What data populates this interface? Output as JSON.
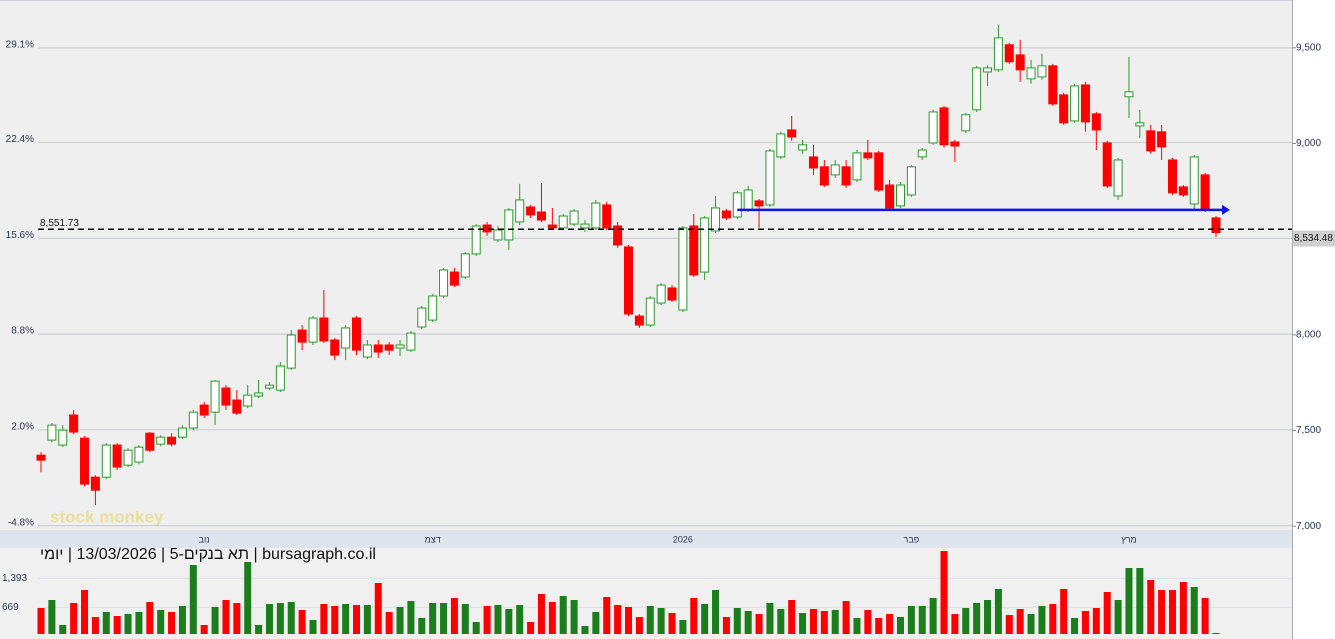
{
  "chart_data": {
    "type": "candlestick",
    "title": "bursagraph.co.il | תא בנקים-5 | 13/03/2026 | יומי",
    "watermark": "stock monkey",
    "categories": [
      null,
      null,
      null,
      null,
      null,
      null,
      null,
      null,
      null,
      null,
      null,
      null,
      null,
      null,
      null,
      "נוב",
      null,
      null,
      null,
      null,
      null,
      null,
      null,
      null,
      null,
      null,
      null,
      null,
      null,
      null,
      null,
      null,
      null,
      null,
      null,
      null,
      "דצמ",
      null,
      null,
      null,
      null,
      null,
      null,
      null,
      null,
      null,
      null,
      null,
      null,
      null,
      null,
      null,
      null,
      null,
      null,
      null,
      null,
      null,
      null,
      "2026",
      null,
      null,
      null,
      null,
      null,
      null,
      null,
      null,
      null,
      null,
      null,
      null,
      null,
      null,
      null,
      null,
      null,
      null,
      null,
      null,
      "פבר",
      null,
      null,
      null,
      null,
      null,
      null,
      null,
      null,
      null,
      null,
      null,
      null,
      null,
      null,
      null,
      null,
      null,
      null,
      null,
      "מרץ",
      null,
      null,
      null,
      null,
      null,
      null,
      null,
      null
    ],
    "ohlc": [
      [
        7371,
        7387,
        7282,
        7345
      ],
      [
        7450,
        7539,
        7439,
        7528
      ],
      [
        7424,
        7528,
        7413,
        7502
      ],
      [
        7581,
        7607,
        7481,
        7492
      ],
      [
        7460,
        7471,
        7209,
        7220
      ],
      [
        7256,
        7267,
        7110,
        7188
      ],
      [
        7256,
        7434,
        7246,
        7424
      ],
      [
        7424,
        7434,
        7293,
        7309
      ],
      [
        7319,
        7408,
        7309,
        7397
      ],
      [
        7335,
        7424,
        7324,
        7413
      ],
      [
        7486,
        7492,
        7387,
        7397
      ],
      [
        7429,
        7476,
        7418,
        7465
      ],
      [
        7465,
        7486,
        7418,
        7429
      ],
      [
        7465,
        7528,
        7455,
        7513
      ],
      [
        7513,
        7607,
        7502,
        7596
      ],
      [
        7633,
        7649,
        7565,
        7581
      ],
      [
        7596,
        7764,
        7528,
        7758
      ],
      [
        7722,
        7737,
        7607,
        7633
      ],
      [
        7659,
        7711,
        7581,
        7591
      ],
      [
        7628,
        7737,
        7617,
        7685
      ],
      [
        7680,
        7764,
        7669,
        7696
      ],
      [
        7722,
        7753,
        7711,
        7737
      ],
      [
        7711,
        7858,
        7701,
        7837
      ],
      [
        7826,
        8025,
        7816,
        7999
      ],
      [
        8025,
        8051,
        7920,
        7962
      ],
      [
        7962,
        8098,
        7947,
        8088
      ],
      [
        8088,
        8234,
        7957,
        7968
      ],
      [
        7973,
        7983,
        7868,
        7894
      ],
      [
        7931,
        8051,
        7868,
        8036
      ],
      [
        8088,
        8098,
        7894,
        7920
      ],
      [
        7884,
        7973,
        7873,
        7947
      ],
      [
        7947,
        7973,
        7879,
        7910
      ],
      [
        7947,
        7962,
        7894,
        7920
      ],
      [
        7931,
        7973,
        7889,
        7947
      ],
      [
        7920,
        8020,
        7910,
        8009
      ],
      [
        8041,
        8151,
        8030,
        8140
      ],
      [
        8077,
        8213,
        8067,
        8203
      ],
      [
        8203,
        8349,
        8192,
        8339
      ],
      [
        8328,
        8349,
        8250,
        8260
      ],
      [
        8302,
        8433,
        8292,
        8423
      ],
      [
        8423,
        8579,
        8412,
        8569
      ],
      [
        8574,
        8590,
        8517,
        8538
      ],
      [
        8496,
        8569,
        8485,
        8548
      ],
      [
        8496,
        8663,
        8443,
        8653
      ],
      [
        8590,
        8789,
        8574,
        8705
      ],
      [
        8668,
        8679,
        8611,
        8627
      ],
      [
        8642,
        8794,
        8590,
        8600
      ],
      [
        8574,
        8663,
        8548,
        8559
      ],
      [
        8559,
        8632,
        8548,
        8621
      ],
      [
        8579,
        8658,
        8569,
        8647
      ],
      [
        8559,
        8600,
        8538,
        8579
      ],
      [
        8559,
        8705,
        8548,
        8689
      ],
      [
        8679,
        8695,
        8548,
        8559
      ],
      [
        8569,
        8590,
        8454,
        8470
      ],
      [
        8459,
        8470,
        8098,
        8109
      ],
      [
        8098,
        8109,
        8036,
        8051
      ],
      [
        8051,
        8203,
        8041,
        8192
      ],
      [
        8166,
        8271,
        8156,
        8260
      ],
      [
        8245,
        8260,
        8172,
        8182
      ],
      [
        8130,
        8569,
        8119,
        8559
      ],
      [
        8569,
        8632,
        8302,
        8313
      ],
      [
        8328,
        8621,
        8287,
        8611
      ],
      [
        8543,
        8726,
        8532,
        8663
      ],
      [
        8647,
        8658,
        8600,
        8611
      ],
      [
        8616,
        8752,
        8606,
        8742
      ],
      [
        8653,
        8778,
        8642,
        8757
      ],
      [
        8700,
        8710,
        8559,
        8674
      ],
      [
        8679,
        8972,
        8668,
        8961
      ],
      [
        8930,
        9061,
        8919,
        9050
      ],
      [
        9071,
        9144,
        9014,
        9034
      ],
      [
        8966,
        9019,
        8946,
        8993
      ],
      [
        8930,
        8993,
        8836,
        8872
      ],
      [
        8878,
        8914,
        8773,
        8783
      ],
      [
        8836,
        8914,
        8820,
        8888
      ],
      [
        8878,
        8914,
        8768,
        8783
      ],
      [
        8810,
        8966,
        8799,
        8951
      ],
      [
        8951,
        9019,
        8914,
        8925
      ],
      [
        8951,
        8961,
        8747,
        8757
      ],
      [
        8783,
        8810,
        8653,
        8663
      ],
      [
        8674,
        8799,
        8663,
        8783
      ],
      [
        8731,
        8888,
        8721,
        8878
      ],
      [
        8930,
        8977,
        8914,
        8966
      ],
      [
        9003,
        9176,
        8993,
        9165
      ],
      [
        9186,
        9197,
        8977,
        8993
      ],
      [
        9008,
        9019,
        8904,
        8987
      ],
      [
        9066,
        9160,
        9055,
        9150
      ],
      [
        9176,
        9406,
        9165,
        9395
      ],
      [
        9374,
        9411,
        9301,
        9395
      ],
      [
        9385,
        9620,
        9374,
        9552
      ],
      [
        9516,
        9526,
        9416,
        9427
      ],
      [
        9463,
        9542,
        9322,
        9385
      ],
      [
        9338,
        9437,
        9312,
        9395
      ],
      [
        9348,
        9469,
        9333,
        9406
      ],
      [
        9406,
        9416,
        9197,
        9207
      ],
      [
        9254,
        9265,
        9097,
        9108
      ],
      [
        9118,
        9312,
        9108,
        9301
      ],
      [
        9306,
        9322,
        9061,
        9113
      ],
      [
        9155,
        9165,
        8966,
        9071
      ],
      [
        9003,
        9014,
        8768,
        8778
      ],
      [
        8726,
        8925,
        8705,
        8914
      ],
      [
        9244,
        9453,
        9134,
        9270
      ],
      [
        9092,
        9176,
        9029,
        9108
      ],
      [
        9066,
        9097,
        8946,
        8961
      ],
      [
        9061,
        9097,
        8914,
        8982
      ],
      [
        8914,
        8925,
        8731,
        8742
      ],
      [
        8773,
        8783,
        8721,
        8731
      ],
      [
        8684,
        8940,
        8647,
        8930
      ],
      [
        8836,
        8846,
        8642,
        8653
      ],
      [
        8611,
        8621,
        8511,
        8534.48
      ]
    ],
    "volume": [
      650,
      850,
      225,
      775,
      1100,
      425,
      550,
      450,
      500,
      550,
      800,
      600,
      550,
      700,
      1725,
      225,
      675,
      850,
      775,
      1800,
      225,
      750,
      775,
      800,
      600,
      350,
      750,
      700,
      750,
      725,
      725,
      1275,
      550,
      675,
      825,
      400,
      775,
      775,
      900,
      750,
      300,
      700,
      725,
      625,
      725,
      300,
      1000,
      800,
      950,
      850,
      200,
      550,
      925,
      725,
      675,
      425,
      700,
      650,
      525,
      350,
      900,
      750,
      1100,
      425,
      650,
      575,
      500,
      775,
      625,
      850,
      525,
      625,
      575,
      600,
      825,
      400,
      600,
      400,
      500,
      425,
      700,
      700,
      900,
      2075,
      500,
      650,
      775,
      850,
      1125,
      475,
      625,
      500,
      700,
      750,
      1125,
      400,
      575,
      650,
      1050,
      850,
      1650,
      1650,
      1350,
      1100,
      1100,
      1300,
      1175,
      900,
      25
    ],
    "up_color": "#2a9a2a",
    "down_color": "#ff0000",
    "volume_up_color": "#1b7d1b",
    "ylim": [
      6980,
      9750
    ],
    "yticks": [
      {
        "value": 7000,
        "label": "7,000"
      },
      {
        "value": 7500,
        "label": "7,500"
      },
      {
        "value": 8000,
        "label": "8,000"
      },
      {
        "value": 9000,
        "label": "9,000"
      },
      {
        "value": 9500,
        "label": "9,500"
      }
    ],
    "y2lim": [
      -5.1,
      32.5
    ],
    "y2ticks": [
      {
        "value": -4.8,
        "label": "-4.8%"
      },
      {
        "value": 2.0,
        "label": "2.0%"
      },
      {
        "value": 8.8,
        "label": "8.8%"
      },
      {
        "value": 15.6,
        "label": "15.6%"
      },
      {
        "value": 22.4,
        "label": "22.4%"
      },
      {
        "value": 29.1,
        "label": "29.1%"
      }
    ],
    "vlim": [
      0,
      2150
    ],
    "vticks": [
      669,
      {
        "value": 1393,
        "label": "1,393"
      }
    ],
    "grid": true,
    "reference_line": {
      "value": 8551.73,
      "label": "8,551.73"
    },
    "last_price_label": "8,534.48",
    "trendline": {
      "value": 8653,
      "start_index": 64,
      "color": "#0a14e6"
    }
  }
}
